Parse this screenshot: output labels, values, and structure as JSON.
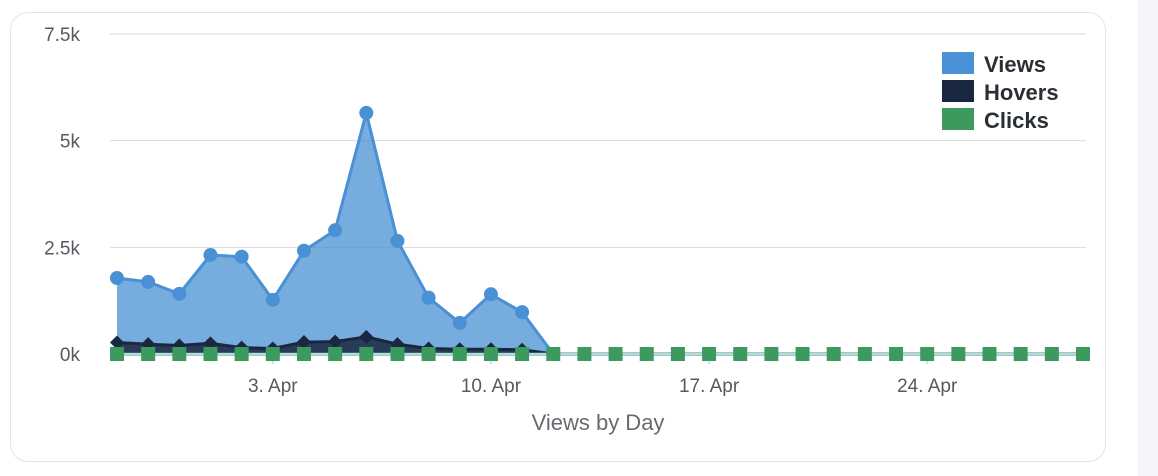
{
  "chart_data": {
    "type": "area",
    "title": "",
    "xlabel": "Views by Day",
    "ylabel": "",
    "x_start": "2023-03-29",
    "x_end": "2023-04-29",
    "ylim": [
      0,
      7500
    ],
    "yticks": [
      0,
      2500,
      5000,
      7500
    ],
    "ytick_labels": [
      "0k",
      "2.5k",
      "5k",
      "7.5k"
    ],
    "xticks": [
      "2023-04-03",
      "2023-04-10",
      "2023-04-17",
      "2023-04-24"
    ],
    "xtick_labels": [
      "3. Apr",
      "10. Apr",
      "17. Apr",
      "24. Apr"
    ],
    "grid": true,
    "legend_position": "top-right",
    "series": [
      {
        "name": "Views",
        "color": "#4a90d4",
        "marker": "circle",
        "x": [
          "2023-03-29",
          "2023-03-30",
          "2023-03-31",
          "2023-04-01",
          "2023-04-02",
          "2023-04-03",
          "2023-04-04",
          "2023-04-05",
          "2023-04-06",
          "2023-04-07",
          "2023-04-08",
          "2023-04-09",
          "2023-04-10",
          "2023-04-11",
          "2023-04-12"
        ],
        "values": [
          1780,
          1690,
          1410,
          2320,
          2280,
          1270,
          2420,
          2900,
          5650,
          2650,
          1320,
          730,
          1400,
          980,
          0
        ]
      },
      {
        "name": "Hovers",
        "color": "#1a2740",
        "marker": "diamond",
        "x": [
          "2023-03-29",
          "2023-03-30",
          "2023-03-31",
          "2023-04-01",
          "2023-04-02",
          "2023-04-03",
          "2023-04-04",
          "2023-04-05",
          "2023-04-06",
          "2023-04-07",
          "2023-04-08",
          "2023-04-09",
          "2023-04-10",
          "2023-04-11",
          "2023-04-12"
        ],
        "values": [
          270,
          230,
          200,
          250,
          150,
          130,
          280,
          290,
          400,
          230,
          130,
          110,
          110,
          100,
          0
        ]
      },
      {
        "name": "Clicks",
        "color": "#3d9a5f",
        "marker": "square",
        "x": [
          "2023-03-29",
          "2023-03-30",
          "2023-03-31",
          "2023-04-01",
          "2023-04-02",
          "2023-04-03",
          "2023-04-04",
          "2023-04-05",
          "2023-04-06",
          "2023-04-07",
          "2023-04-08",
          "2023-04-09",
          "2023-04-10",
          "2023-04-11",
          "2023-04-12",
          "2023-04-13",
          "2023-04-14",
          "2023-04-15",
          "2023-04-16",
          "2023-04-17",
          "2023-04-18",
          "2023-04-19",
          "2023-04-20",
          "2023-04-21",
          "2023-04-22",
          "2023-04-23",
          "2023-04-24",
          "2023-04-25",
          "2023-04-26",
          "2023-04-27",
          "2023-04-28",
          "2023-04-29"
        ],
        "values": [
          0,
          0,
          0,
          0,
          0,
          0,
          0,
          0,
          0,
          0,
          0,
          0,
          0,
          0,
          0,
          0,
          0,
          0,
          0,
          0,
          0,
          0,
          0,
          0,
          0,
          0,
          0,
          0,
          0,
          0,
          0,
          0
        ]
      }
    ]
  }
}
